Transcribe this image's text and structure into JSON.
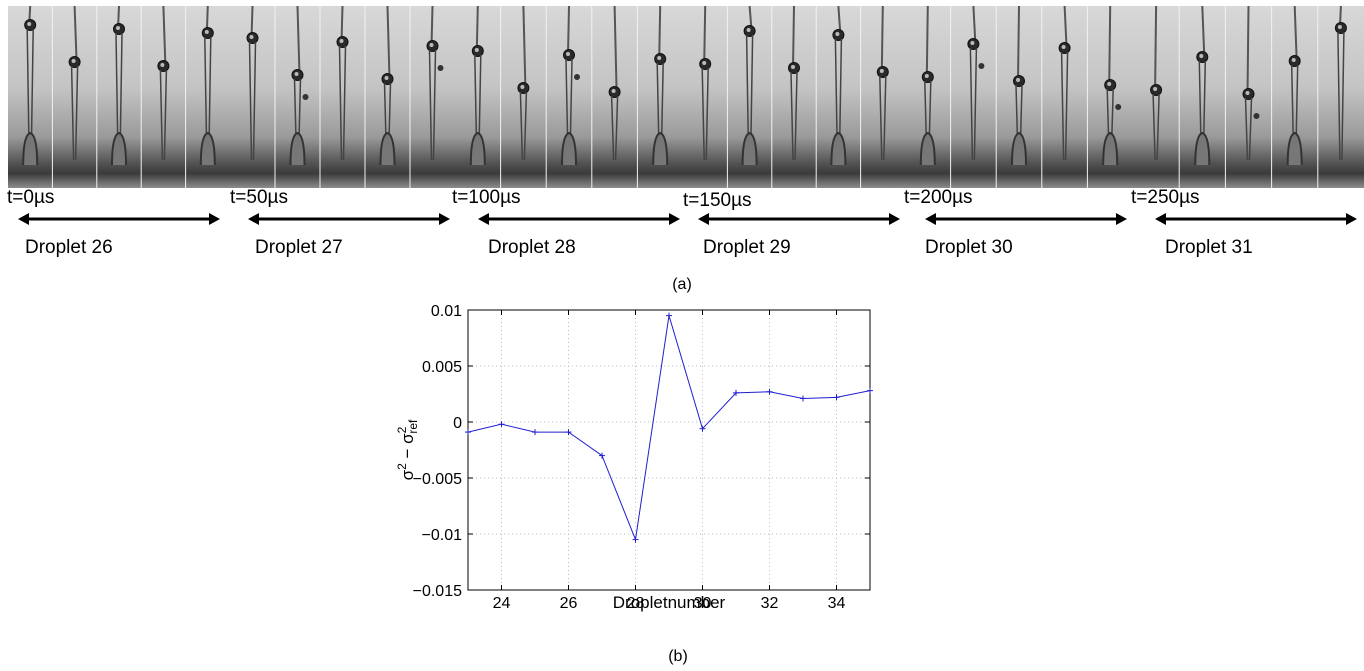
{
  "panel_a": {
    "groups": [
      {
        "time": "t=0µs",
        "droplet": "Droplet 26"
      },
      {
        "time": "t=50µs",
        "droplet": "Droplet 27"
      },
      {
        "time": "t=100µs",
        "droplet": "Droplet 28"
      },
      {
        "time": "t=150µs",
        "droplet": "Droplet 29"
      },
      {
        "time": "t=200µs",
        "droplet": "Droplet 30"
      },
      {
        "time": "t=250µs",
        "droplet": "Droplet 31"
      }
    ],
    "caption": "(a)"
  },
  "panel_b_caption": "(b)",
  "chart_data": {
    "type": "line",
    "x": [
      23,
      24,
      25,
      26,
      27,
      28,
      29,
      30,
      31,
      32,
      33,
      34,
      35
    ],
    "series": [
      {
        "values": [
          -0.0009,
          -0.0002,
          -0.0009,
          -0.0009,
          -0.003,
          -0.0105,
          0.0095,
          -0.0006,
          0.0026,
          0.0027,
          0.0021,
          0.0022,
          0.0028
        ],
        "color": "#1f1fcf",
        "marker": "+"
      }
    ],
    "xlabel": "Dropletnumber",
    "ylabel": "σ² − σ²ref",
    "xlim": [
      23,
      35
    ],
    "ylim": [
      -0.015,
      0.01
    ],
    "xticks": [
      "24",
      "26",
      "28",
      "30",
      "32",
      "34"
    ],
    "yticks": [
      "0.01",
      "0.005",
      "0",
      "−0.005",
      "−0.01",
      "−0.015"
    ],
    "grid": true
  }
}
